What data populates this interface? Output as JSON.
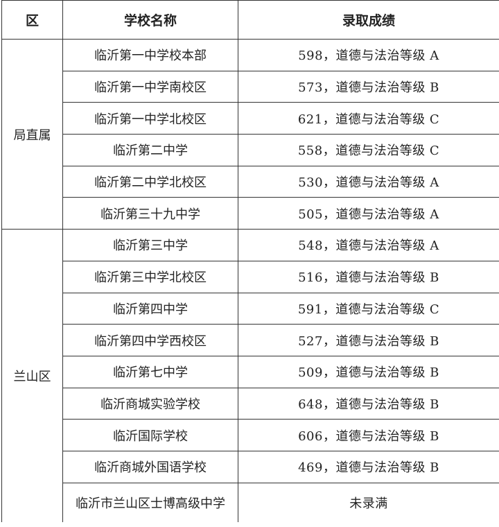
{
  "headers": [
    "区",
    "学校名称",
    "录取成绩"
  ],
  "groups": [
    {
      "district": "局直属",
      "rows": [
        {
          "school": "临沂第一中学校本部",
          "score": "598，道德与法治等级 A"
        },
        {
          "school": "临沂第一中学南校区",
          "score": "573，道德与法治等级 B"
        },
        {
          "school": "临沂第一中学北校区",
          "score": "621，道德与法治等级 C"
        },
        {
          "school": "临沂第二中学",
          "score": "558，道德与法治等级 C"
        },
        {
          "school": "临沂第二中学北校区",
          "score": "530，道德与法治等级 A"
        },
        {
          "school": "临沂第三十九中学",
          "score": "505，道德与法治等级 A"
        }
      ]
    },
    {
      "district": "兰山区",
      "rows": [
        {
          "school": "临沂第三中学",
          "score": "548，道德与法治等级 A"
        },
        {
          "school": "临沂第三中学北校区",
          "score": "516，道德与法治等级 B"
        },
        {
          "school": "临沂第四中学",
          "score": "591，道德与法治等级 C"
        },
        {
          "school": "临沂第四中学西校区",
          "score": "527，道德与法治等级 B"
        },
        {
          "school": "临沂第七中学",
          "score": "509，道德与法治等级 B"
        },
        {
          "school": "临沂商城实验学校",
          "score": "648，道德与法治等级 B"
        },
        {
          "school": "临沂国际学校",
          "score": "606，道德与法治等级 B"
        },
        {
          "school": "临沂商城外国语学校",
          "score": "469，道德与法治等级 B"
        },
        {
          "school": "临沂市兰山区士博高级中学",
          "score": "未录满"
        }
      ]
    }
  ]
}
